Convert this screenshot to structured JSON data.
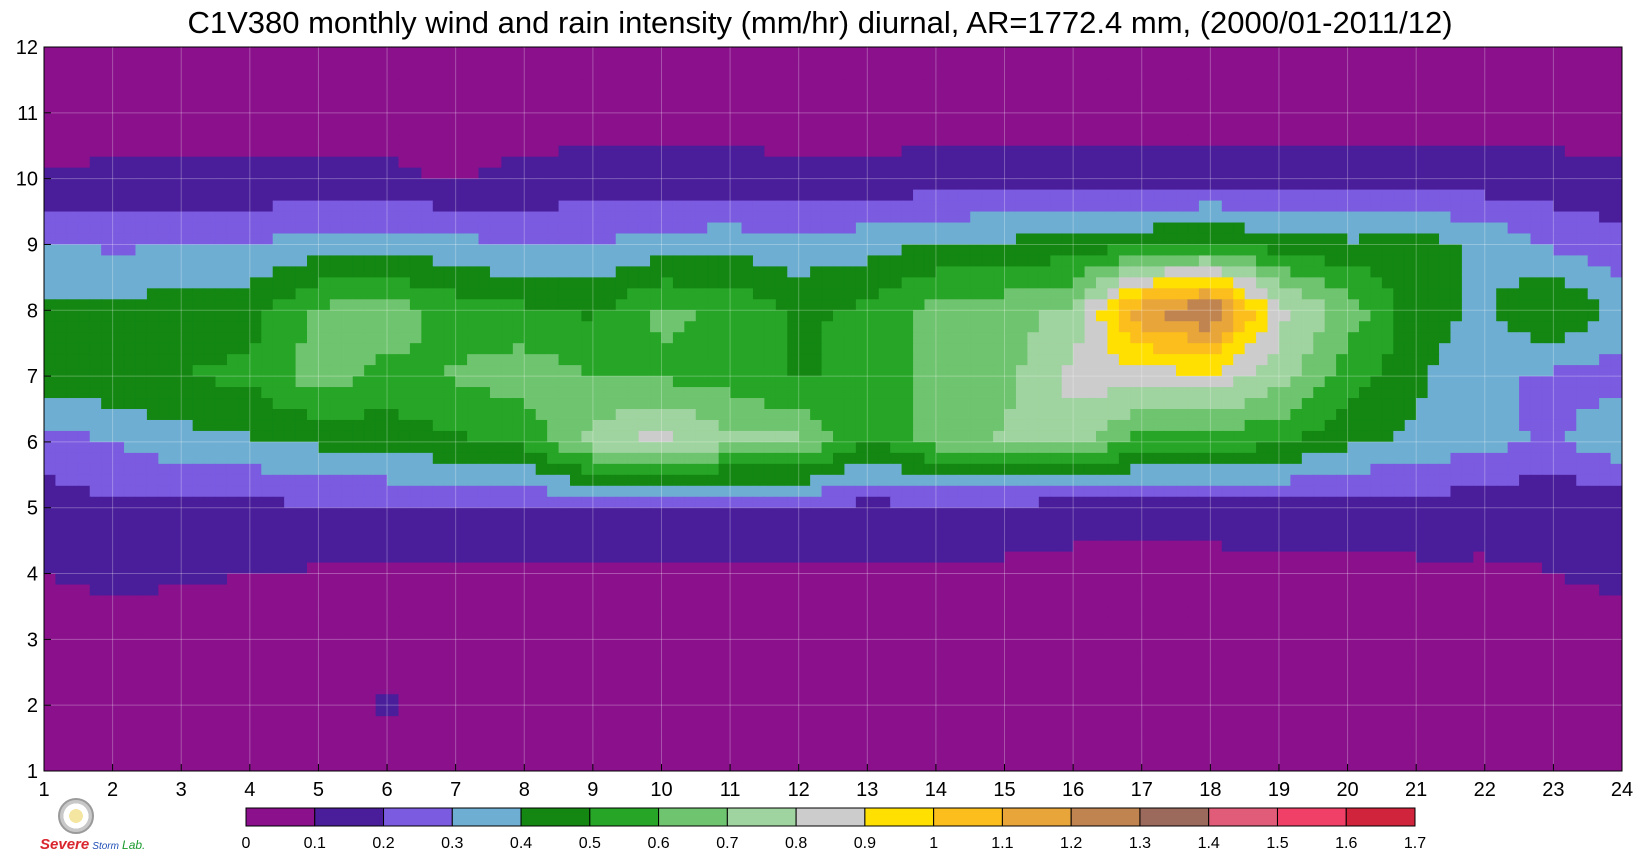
{
  "chart_data": {
    "type": "heatmap",
    "title": "C1V380 monthly wind and rain intensity (mm/hr) diurnal, AR=1772.4 mm, (2000/01-2011/12)",
    "xlabel": "",
    "ylabel": "",
    "x": [
      1,
      2,
      3,
      4,
      5,
      6,
      7,
      8,
      9,
      10,
      11,
      12,
      13,
      14,
      15,
      16,
      17,
      18,
      19,
      20,
      21,
      22,
      23,
      24
    ],
    "y": [
      1,
      2,
      3,
      4,
      5,
      6,
      7,
      8,
      9,
      10,
      11,
      12
    ],
    "xlim": [
      1,
      24
    ],
    "ylim": [
      1,
      12
    ],
    "grid": true,
    "colorbar": {
      "levels": [
        0,
        0.1,
        0.2,
        0.3,
        0.4,
        0.5,
        0.6,
        0.7,
        0.8,
        0.9,
        1,
        1.1,
        1.2,
        1.3,
        1.4,
        1.5,
        1.6,
        1.7
      ],
      "tick_labels": [
        "0",
        "0.1",
        "0.2",
        "0.3",
        "0.4",
        "0.5",
        "0.6",
        "0.7",
        "0.8",
        "0.9",
        "1",
        "1.1",
        "1.2",
        "1.3",
        "1.4",
        "1.5",
        "1.6",
        "1.7"
      ],
      "colors": [
        "#8a108c",
        "#4a1e9a",
        "#7b5be0",
        "#6eaed2",
        "#138712",
        "#26a526",
        "#6fc46f",
        "#9fd39f",
        "#cccccc",
        "#ffe000",
        "#fbbe1c",
        "#e8a53a",
        "#c08450",
        "#9b6a5c",
        "#e05c78",
        "#f04068",
        "#d0243c"
      ],
      "placement": "bottom"
    },
    "z": [
      [
        0.04,
        0.04,
        0.04,
        0.05,
        0.05,
        0.05,
        0.05,
        0.05,
        0.05,
        0.05,
        0.05,
        0.05,
        0.05,
        0.05,
        0.05,
        0.05,
        0.05,
        0.05,
        0.05,
        0.05,
        0.05,
        0.05,
        0.05,
        0.05
      ],
      [
        0.05,
        0.05,
        0.05,
        0.06,
        0.07,
        0.11,
        0.05,
        0.05,
        0.05,
        0.05,
        0.05,
        0.05,
        0.05,
        0.05,
        0.05,
        0.05,
        0.05,
        0.05,
        0.05,
        0.05,
        0.05,
        0.05,
        0.05,
        0.05
      ],
      [
        0.06,
        0.06,
        0.06,
        0.06,
        0.06,
        0.06,
        0.06,
        0.06,
        0.06,
        0.06,
        0.06,
        0.06,
        0.06,
        0.06,
        0.07,
        0.06,
        0.06,
        0.06,
        0.06,
        0.06,
        0.06,
        0.06,
        0.06,
        0.06
      ],
      [
        0.1,
        0.12,
        0.11,
        0.1,
        0.09,
        0.08,
        0.08,
        0.08,
        0.08,
        0.08,
        0.08,
        0.09,
        0.09,
        0.09,
        0.08,
        0.07,
        0.07,
        0.07,
        0.07,
        0.08,
        0.08,
        0.09,
        0.1,
        0.12
      ],
      [
        0.15,
        0.19,
        0.16,
        0.16,
        0.2,
        0.2,
        0.2,
        0.2,
        0.2,
        0.2,
        0.17,
        0.19,
        0.17,
        0.17,
        0.16,
        0.14,
        0.14,
        0.14,
        0.16,
        0.15,
        0.16,
        0.13,
        0.12,
        0.13
      ],
      [
        0.25,
        0.3,
        0.36,
        0.39,
        0.42,
        0.44,
        0.48,
        0.52,
        0.75,
        0.85,
        0.72,
        0.72,
        0.48,
        0.65,
        0.72,
        0.75,
        0.55,
        0.55,
        0.52,
        0.42,
        0.38,
        0.33,
        0.28,
        0.38
      ],
      [
        0.46,
        0.48,
        0.5,
        0.52,
        0.65,
        0.57,
        0.61,
        0.66,
        0.6,
        0.58,
        0.56,
        0.48,
        0.56,
        0.62,
        0.66,
        0.84,
        0.86,
        0.88,
        0.74,
        0.55,
        0.42,
        0.32,
        0.28,
        0.26
      ],
      [
        0.42,
        0.42,
        0.45,
        0.46,
        0.62,
        0.66,
        0.55,
        0.52,
        0.48,
        0.62,
        0.58,
        0.48,
        0.52,
        0.64,
        0.66,
        0.72,
        1.18,
        1.32,
        0.84,
        0.66,
        0.45,
        0.38,
        0.52,
        0.35
      ],
      [
        0.32,
        0.28,
        0.3,
        0.3,
        0.34,
        0.34,
        0.34,
        0.28,
        0.3,
        0.34,
        0.36,
        0.33,
        0.36,
        0.4,
        0.42,
        0.44,
        0.48,
        0.5,
        0.46,
        0.42,
        0.44,
        0.38,
        0.28,
        0.24
      ],
      [
        0.11,
        0.12,
        0.12,
        0.12,
        0.12,
        0.12,
        0.09,
        0.13,
        0.14,
        0.14,
        0.14,
        0.13,
        0.13,
        0.14,
        0.15,
        0.15,
        0.15,
        0.16,
        0.16,
        0.16,
        0.16,
        0.14,
        0.14,
        0.12
      ],
      [
        0.05,
        0.05,
        0.05,
        0.05,
        0.05,
        0.05,
        0.05,
        0.05,
        0.05,
        0.05,
        0.05,
        0.05,
        0.05,
        0.05,
        0.05,
        0.05,
        0.05,
        0.05,
        0.05,
        0.05,
        0.05,
        0.05,
        0.05,
        0.05
      ],
      [
        0.03,
        0.03,
        0.03,
        0.03,
        0.03,
        0.03,
        0.03,
        0.03,
        0.03,
        0.03,
        0.03,
        0.03,
        0.03,
        0.03,
        0.03,
        0.03,
        0.03,
        0.03,
        0.03,
        0.03,
        0.03,
        0.03,
        0.03,
        0.03
      ]
    ]
  },
  "logo": {
    "line1": "Severe",
    "line2": "Storm",
    "line3": "Lab."
  }
}
